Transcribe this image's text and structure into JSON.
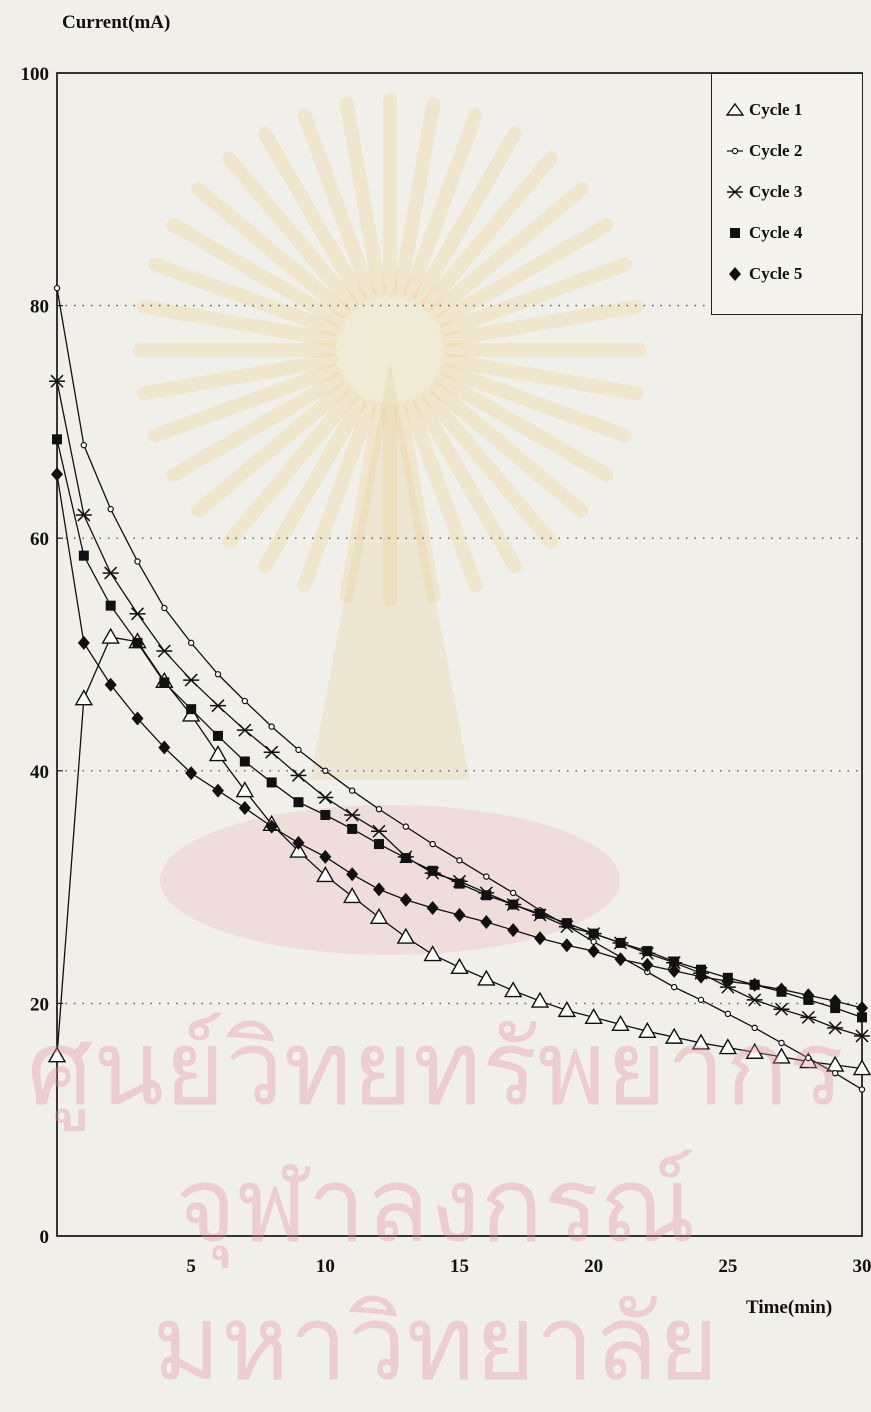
{
  "chart_data": {
    "type": "line",
    "ylabel": "Current(mA)",
    "xlabel": "Time(min)",
    "xlim": [
      0,
      30
    ],
    "ylim": [
      0,
      100
    ],
    "xticks": [
      5,
      10,
      15,
      20,
      25,
      30
    ],
    "yticks": [
      0,
      20,
      40,
      60,
      80,
      100
    ],
    "grid": "dotted horizontal lines at 20, 40, 60, 80",
    "legend_position": "top-right",
    "x": [
      0,
      1,
      2,
      3,
      4,
      5,
      6,
      7,
      8,
      9,
      10,
      11,
      12,
      13,
      14,
      15,
      16,
      17,
      18,
      19,
      20,
      21,
      22,
      23,
      24,
      25,
      26,
      27,
      28,
      29,
      30
    ],
    "series": [
      {
        "name": "Cycle 1",
        "marker": "open-triangle",
        "values": [
          15.5,
          46.2,
          51.5,
          51.1,
          47.7,
          44.8,
          41.4,
          38.3,
          35.4,
          33.1,
          31.0,
          29.2,
          27.4,
          25.7,
          24.2,
          23.1,
          22.1,
          21.1,
          20.2,
          19.4,
          18.8,
          18.2,
          17.6,
          17.1,
          16.6,
          16.2,
          15.8,
          15.4,
          15.0,
          14.7,
          14.4
        ]
      },
      {
        "name": "Cycle 2",
        "marker": "small-open-circle",
        "values": [
          81.5,
          68.0,
          62.5,
          58.0,
          54.0,
          51.0,
          48.3,
          46.0,
          43.8,
          41.8,
          40.0,
          38.3,
          36.7,
          35.2,
          33.7,
          32.3,
          30.9,
          29.5,
          28.0,
          26.7,
          25.3,
          24.0,
          22.7,
          21.4,
          20.3,
          19.1,
          17.9,
          16.6,
          15.3,
          14.0,
          12.6
        ]
      },
      {
        "name": "Cycle 3",
        "marker": "asterisk",
        "values": [
          73.5,
          62.0,
          57.0,
          53.5,
          50.3,
          47.8,
          45.6,
          43.5,
          41.6,
          39.6,
          37.7,
          36.2,
          34.8,
          32.6,
          31.2,
          30.5,
          29.5,
          28.5,
          27.6,
          26.6,
          26.0,
          25.2,
          24.3,
          23.5,
          22.6,
          21.4,
          20.3,
          19.5,
          18.8,
          17.9,
          17.2
        ]
      },
      {
        "name": "Cycle 4",
        "marker": "filled-square",
        "values": [
          68.5,
          58.5,
          54.2,
          51.0,
          47.6,
          45.3,
          43.0,
          40.8,
          39.0,
          37.3,
          36.2,
          35.0,
          33.7,
          32.5,
          31.4,
          30.3,
          29.3,
          28.5,
          27.7,
          26.9,
          26.0,
          25.2,
          24.5,
          23.6,
          22.9,
          22.2,
          21.6,
          21.0,
          20.3,
          19.6,
          18.8
        ]
      },
      {
        "name": "Cycle 5",
        "marker": "filled-diamond",
        "values": [
          65.5,
          51.0,
          47.4,
          44.5,
          42.0,
          39.8,
          38.3,
          36.8,
          35.2,
          33.8,
          32.6,
          31.1,
          29.8,
          28.9,
          28.2,
          27.6,
          27.0,
          26.3,
          25.6,
          25.0,
          24.5,
          23.8,
          23.3,
          22.8,
          22.3,
          21.9,
          21.6,
          21.2,
          20.7,
          20.2,
          19.6
        ]
      }
    ]
  },
  "watermark_text": [
    "ศูนย์วิทยทรัพยากร",
    "จุฬาลงกรณ์มหาวิทยาลัย"
  ]
}
